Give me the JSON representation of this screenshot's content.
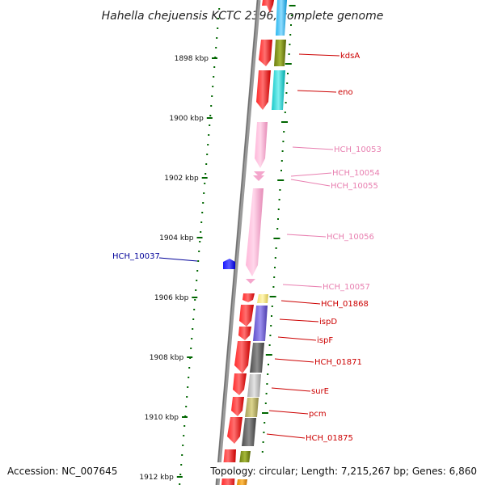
{
  "title": "Hahella chejuensis KCTC 2396, complete genome",
  "accession": "Accession: NC_007645",
  "topology": "Topology: circular; Length: 7,215,267 bp; Genes: 6,860",
  "colors": {
    "dark_red": "#cc0000",
    "pink": "#e87fb0",
    "blue": "#000099",
    "tick": "#006600"
  },
  "ruler_labels": [
    "1898 kbp",
    "1900 kbp",
    "1902 kbp",
    "1904 kbp",
    "1906 kbp",
    "1908 kbp",
    "1910 kbp",
    "1912 kbp"
  ],
  "gene_labels": [
    {
      "name": "kdsA",
      "color": "#cc0000"
    },
    {
      "name": "eno",
      "color": "#cc0000"
    },
    {
      "name": "HCH_10053",
      "color": "#e87fb0"
    },
    {
      "name": "HCH_10054",
      "color": "#e87fb0"
    },
    {
      "name": "HCH_10055",
      "color": "#e87fb0"
    },
    {
      "name": "HCH_10056",
      "color": "#e87fb0"
    },
    {
      "name": "HCH_10057",
      "color": "#e87fb0"
    },
    {
      "name": "HCH_01868",
      "color": "#cc0000"
    },
    {
      "name": "ispD",
      "color": "#cc0000"
    },
    {
      "name": "ispF",
      "color": "#cc0000"
    },
    {
      "name": "HCH_01871",
      "color": "#cc0000"
    },
    {
      "name": "surE",
      "color": "#cc0000"
    },
    {
      "name": "pcm",
      "color": "#cc0000"
    },
    {
      "name": "HCH_01875",
      "color": "#cc0000"
    },
    {
      "name": "HCH_10037",
      "color": "#000099"
    }
  ]
}
